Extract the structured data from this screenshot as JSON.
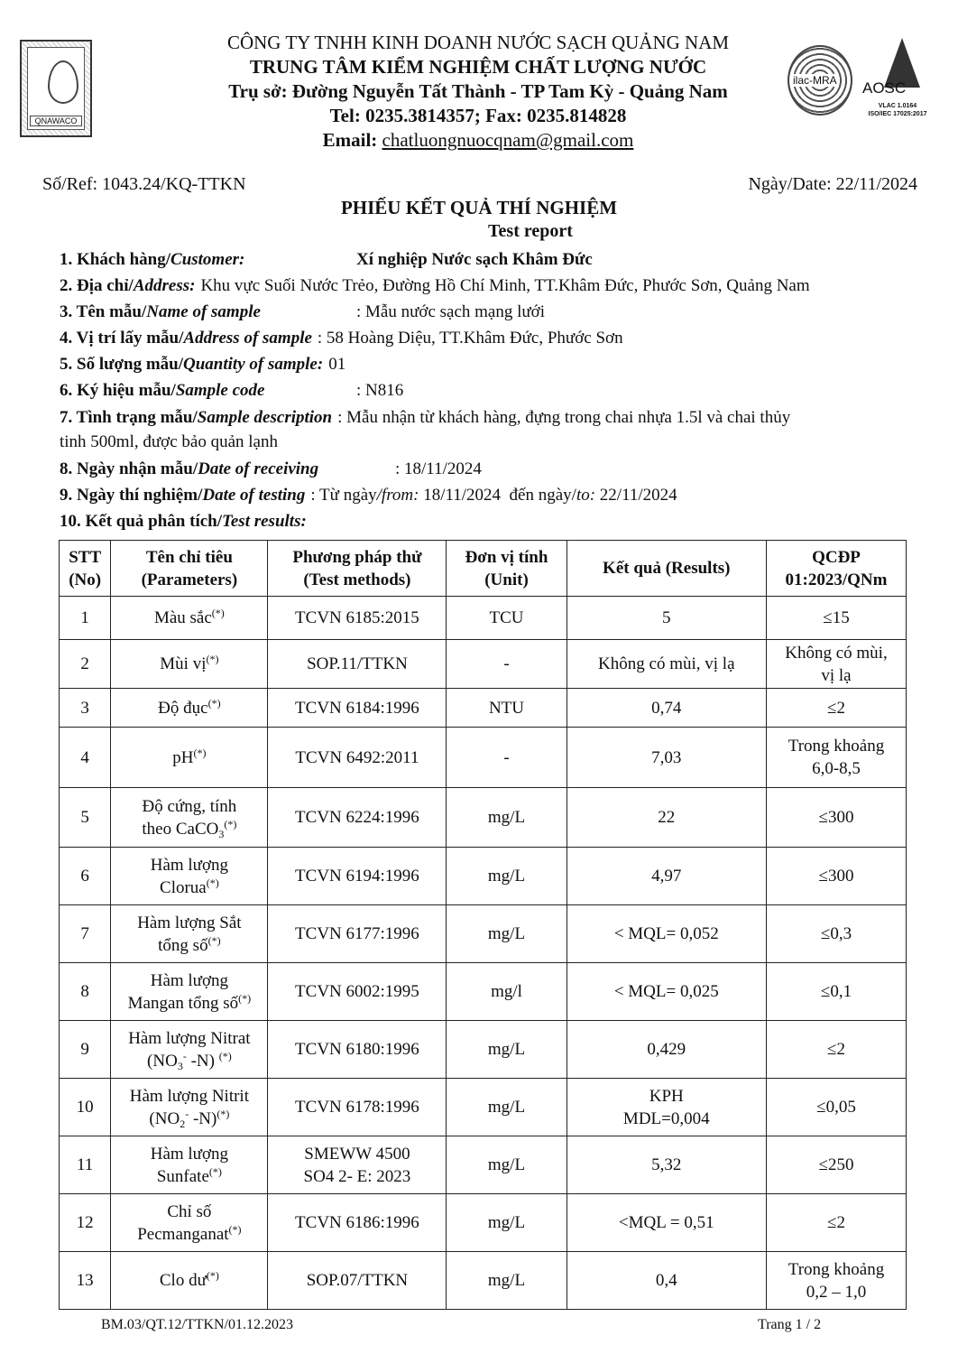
{
  "header": {
    "logo_text": "QNAWACO",
    "company": "CÔNG TY TNHH KINH DOANH NƯỚC SẠCH QUẢNG NAM",
    "center": "TRUNG TÂM KIỂM NGHIỆM CHẤT LƯỢNG NƯỚC",
    "address": "Trụ sở: Đường Nguyễn Tất Thành - TP Tam Kỳ -  Quảng Nam",
    "phone": "Tel: 0235.3814357; Fax: 0235.814828",
    "email_label": "Email:",
    "email": "chatluongnuocqnam@gmail.com",
    "ilac_text": "ilac-MRA",
    "aosc_text": "AOSC",
    "aosc_line1": "VLAC 1.0164",
    "aosc_line2": "ISO/IEC 17025:2017"
  },
  "ref": "Số/Ref: 1043.24/KQ-TTKN",
  "date": "Ngày/Date: 22/11/2024",
  "title": "PHIẾU KẾT QUẢ THÍ NGHIỆM",
  "subtitle": "Test report",
  "info": [
    {
      "label": "1. Khách hàng/",
      "label_en": "Customer:",
      "value": "Xí nghiệp Nước sạch Khâm Đức"
    },
    {
      "label": "2. Địa chỉ/",
      "label_en": "Address:",
      "value": "Khu vực Suối Nước Trẻo, Đường Hồ Chí Minh, TT.Khâm Đức, Phước Sơn, Quảng Nam"
    },
    {
      "label": "3. Tên mẫu/",
      "label_en": "Name of sample",
      "value": ": Mẫu nước sạch mạng lưới"
    },
    {
      "label": "4. Vị trí lấy mẫu/",
      "label_en": "Address of sample",
      "value": ": 58 Hoàng Diệu, TT.Khâm Đức, Phước Sơn"
    },
    {
      "label": "5. Số lượng mẫu/",
      "label_en": "Quantity of sample:",
      "value": "01"
    },
    {
      "label": "6. Ký hiệu mẫu/",
      "label_en": "Sample code",
      "value": ": N816"
    },
    {
      "label": "7. Tình trạng mẫu/",
      "label_en": "Sample description",
      "value": ": Mẫu nhận từ khách hàng, đựng trong chai nhựa 1.5l và chai thủy",
      "value2": "tinh 500ml, được bảo quản lạnh"
    },
    {
      "label": "8. Ngày nhận mẫu/",
      "label_en": "Date of receiving",
      "value": ": 18/11/2024"
    },
    {
      "label": "9. Ngày thí nghiệm/",
      "label_en": "Date of testing",
      "value": ": Từ ngày",
      "from": "/from:",
      "from_val": " 18/11/2024  đến ngày/",
      "to": "to:",
      "to_val": " 22/11/2024"
    },
    {
      "label": "10. Kết quả phân tích/",
      "label_en": "Test results:"
    }
  ],
  "table": {
    "headers": [
      [
        "STT",
        "(No)"
      ],
      [
        "Tên chỉ tiêu",
        "(Parameters)"
      ],
      [
        "Phương pháp thử",
        "(Test methods)"
      ],
      [
        "Đơn vị tính",
        "(Unit)"
      ],
      [
        "Kết quả (Results)"
      ],
      [
        "QCĐP",
        "01:2023/QNm"
      ]
    ],
    "rows": [
      {
        "no": "1",
        "param": [
          [
            {
              "t": "Màu sắc"
            },
            {
              "sup": "(*)"
            }
          ]
        ],
        "method": [
          "TCVN 6185:2015"
        ],
        "unit": "TCU",
        "result": [
          "5"
        ],
        "limit": [
          "≤15"
        ]
      },
      {
        "no": "2",
        "param": [
          [
            {
              "t": "Mùi vị"
            },
            {
              "sup": "(*)"
            }
          ]
        ],
        "method": [
          "SOP.11/TTKN"
        ],
        "unit": "-",
        "result": [
          "Không có mùi, vị lạ"
        ],
        "limit": [
          "Không có mùi,",
          "vị lạ"
        ]
      },
      {
        "no": "3",
        "param": [
          [
            {
              "t": "Độ đục"
            },
            {
              "sup": "(*)"
            }
          ]
        ],
        "method": [
          "TCVN 6184:1996"
        ],
        "unit": "NTU",
        "result": [
          "0,74"
        ],
        "limit": [
          "≤2"
        ]
      },
      {
        "no": "4",
        "param": [
          [
            {
              "t": "pH"
            },
            {
              "sup": "(*)"
            }
          ]
        ],
        "method": [
          "TCVN 6492:2011"
        ],
        "unit": "-",
        "result": [
          "7,03"
        ],
        "limit": [
          "Trong khoảng",
          "6,0-8,5"
        ]
      },
      {
        "no": "5",
        "param": [
          [
            {
              "t": "Độ cứng, tính"
            }
          ],
          [
            {
              "t": "theo CaCO"
            },
            {
              "sub": "3"
            },
            {
              "sup": "(*)"
            }
          ]
        ],
        "method": [
          "TCVN 6224:1996"
        ],
        "unit": "mg/L",
        "result": [
          "22"
        ],
        "limit": [
          "≤300"
        ]
      },
      {
        "no": "6",
        "param": [
          [
            {
              "t": "Hàm lượng"
            }
          ],
          [
            {
              "t": "Clorua"
            },
            {
              "sup": "(*)"
            }
          ]
        ],
        "method": [
          "TCVN 6194:1996"
        ],
        "unit": "mg/L",
        "result": [
          "4,97"
        ],
        "limit": [
          "≤300"
        ]
      },
      {
        "no": "7",
        "param": [
          [
            {
              "t": "Hàm lượng Sắt"
            }
          ],
          [
            {
              "t": "tổng số"
            },
            {
              "sup": "(*)"
            }
          ]
        ],
        "method": [
          "TCVN 6177:1996"
        ],
        "unit": "mg/L",
        "result": [
          "< MQL= 0,052"
        ],
        "limit": [
          "≤0,3"
        ]
      },
      {
        "no": "8",
        "param": [
          [
            {
              "t": "Hàm lượng"
            }
          ],
          [
            {
              "t": "Mangan tổng số"
            },
            {
              "sup": "(*)"
            }
          ]
        ],
        "method": [
          "TCVN 6002:1995"
        ],
        "unit": "mg/l",
        "result": [
          "< MQL= 0,025"
        ],
        "limit": [
          "≤0,1"
        ]
      },
      {
        "no": "9",
        "param": [
          [
            {
              "t": "Hàm lượng Nitrat"
            }
          ],
          [
            {
              "t": "(NO"
            },
            {
              "sub": "3"
            },
            {
              "sup": "-"
            },
            {
              "t": " -N) "
            },
            {
              "sup": "(*)"
            }
          ]
        ],
        "method": [
          "TCVN 6180:1996"
        ],
        "unit": "mg/L",
        "result": [
          "0,429"
        ],
        "limit": [
          "≤2"
        ]
      },
      {
        "no": "10",
        "param": [
          [
            {
              "t": "Hàm lượng Nitrit"
            }
          ],
          [
            {
              "t": "(NO"
            },
            {
              "sub": "2"
            },
            {
              "sup": "-"
            },
            {
              "t": " -N)"
            },
            {
              "sup": "(*)"
            }
          ]
        ],
        "method": [
          "TCVN 6178:1996"
        ],
        "unit": "mg/L",
        "result": [
          "KPH",
          "MDL=0,004"
        ],
        "limit": [
          "≤0,05"
        ]
      },
      {
        "no": "11",
        "param": [
          [
            {
              "t": "Hàm lượng"
            }
          ],
          [
            {
              "t": "Sunfate"
            },
            {
              "sup": "(*)"
            }
          ]
        ],
        "method": [
          "SMEWW 4500",
          "SO4 2- E: 2023"
        ],
        "unit": "mg/L",
        "result": [
          "5,32"
        ],
        "limit": [
          "≤250"
        ]
      },
      {
        "no": "12",
        "param": [
          [
            {
              "t": "Chỉ số"
            }
          ],
          [
            {
              "t": "Pecmanganat"
            },
            {
              "sup": "(*)"
            }
          ]
        ],
        "method": [
          "TCVN 6186:1996"
        ],
        "unit": "mg/L",
        "result": [
          "<MQL = 0,51"
        ],
        "limit": [
          "≤2"
        ]
      },
      {
        "no": "13",
        "param": [
          [
            {
              "t": "Clo dư"
            },
            {
              "sup": "(*)"
            }
          ]
        ],
        "method": [
          "SOP.07/TTKN"
        ],
        "unit": "mg/L",
        "result": [
          "0,4"
        ],
        "limit": [
          "Trong khoảng",
          "0,2 – 1,0"
        ]
      }
    ]
  },
  "footer": {
    "form_code": "BM.03/QT.12/TTKN/01.12.2023",
    "page": "Trang 1 / 2"
  }
}
